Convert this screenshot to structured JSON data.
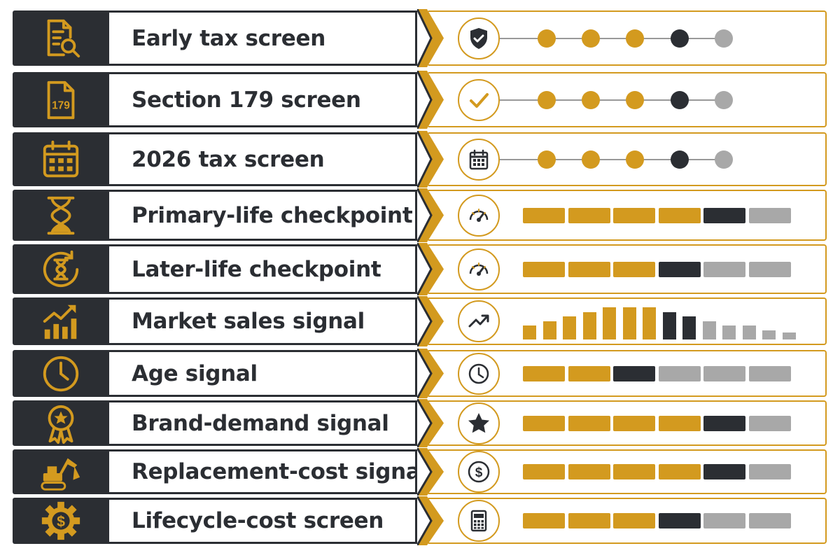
{
  "colors": {
    "gold": "#d39a1f",
    "dark": "#2b2e33",
    "grey": "#a8a8a8",
    "line": "#999999"
  },
  "rows": [
    {
      "label": "Early tax screen",
      "left_icon": "document-search-icon",
      "indicator_icon": "shield-check-icon",
      "visual": "steps",
      "levels": [
        "gold",
        "gold",
        "gold",
        "dark",
        "grey"
      ]
    },
    {
      "label": "Section 179 screen",
      "left_icon": "document-179-icon",
      "left_icon_text": "179",
      "indicator_icon": "checkmark-icon",
      "visual": "steps",
      "levels": [
        "gold",
        "gold",
        "gold",
        "dark",
        "grey"
      ]
    },
    {
      "label": "2026 tax screen",
      "left_icon": "calendar-icon",
      "indicator_icon": "calendar-icon",
      "visual": "steps",
      "levels": [
        "gold",
        "gold",
        "gold",
        "dark",
        "grey"
      ]
    },
    {
      "label": "Primary-life checkpoint",
      "left_icon": "hourglass-icon",
      "indicator_icon": "gauge-icon",
      "visual": "segments",
      "levels": [
        "gold",
        "gold",
        "gold",
        "gold",
        "dark",
        "grey"
      ]
    },
    {
      "label": "Later-life checkpoint",
      "left_icon": "hourglass-cycle-icon",
      "indicator_icon": "gauge-icon",
      "visual": "segments",
      "levels": [
        "gold",
        "gold",
        "gold",
        "dark",
        "grey",
        "grey"
      ]
    },
    {
      "label": "Market sales signal",
      "left_icon": "growth-chart-icon",
      "indicator_icon": "trend-up-icon",
      "visual": "bars",
      "bar_values": [
        3,
        4,
        5,
        6,
        7,
        7,
        7,
        6,
        5,
        4,
        3,
        3,
        2,
        1.5
      ],
      "levels": [
        "gold",
        "gold",
        "gold",
        "gold",
        "gold",
        "gold",
        "gold",
        "dark",
        "dark",
        "grey",
        "grey",
        "grey",
        "grey",
        "grey"
      ]
    },
    {
      "label": "Age signal",
      "left_icon": "clock-icon",
      "indicator_icon": "clock-icon",
      "visual": "segments",
      "levels": [
        "gold",
        "gold",
        "dark",
        "grey",
        "grey",
        "grey"
      ]
    },
    {
      "label": "Brand-demand signal",
      "left_icon": "award-ribbon-icon",
      "indicator_icon": "star-icon",
      "visual": "segments",
      "levels": [
        "gold",
        "gold",
        "gold",
        "gold",
        "dark",
        "grey"
      ]
    },
    {
      "label": "Replacement-cost signal",
      "left_icon": "excavator-icon",
      "indicator_icon": "dollar-coin-icon",
      "visual": "segments",
      "levels": [
        "gold",
        "gold",
        "gold",
        "gold",
        "dark",
        "grey"
      ]
    },
    {
      "label": "Lifecycle-cost screen",
      "left_icon": "gear-dollar-icon",
      "indicator_icon": "calculator-icon",
      "visual": "segments",
      "levels": [
        "gold",
        "gold",
        "gold",
        "dark",
        "grey",
        "grey"
      ]
    }
  ]
}
